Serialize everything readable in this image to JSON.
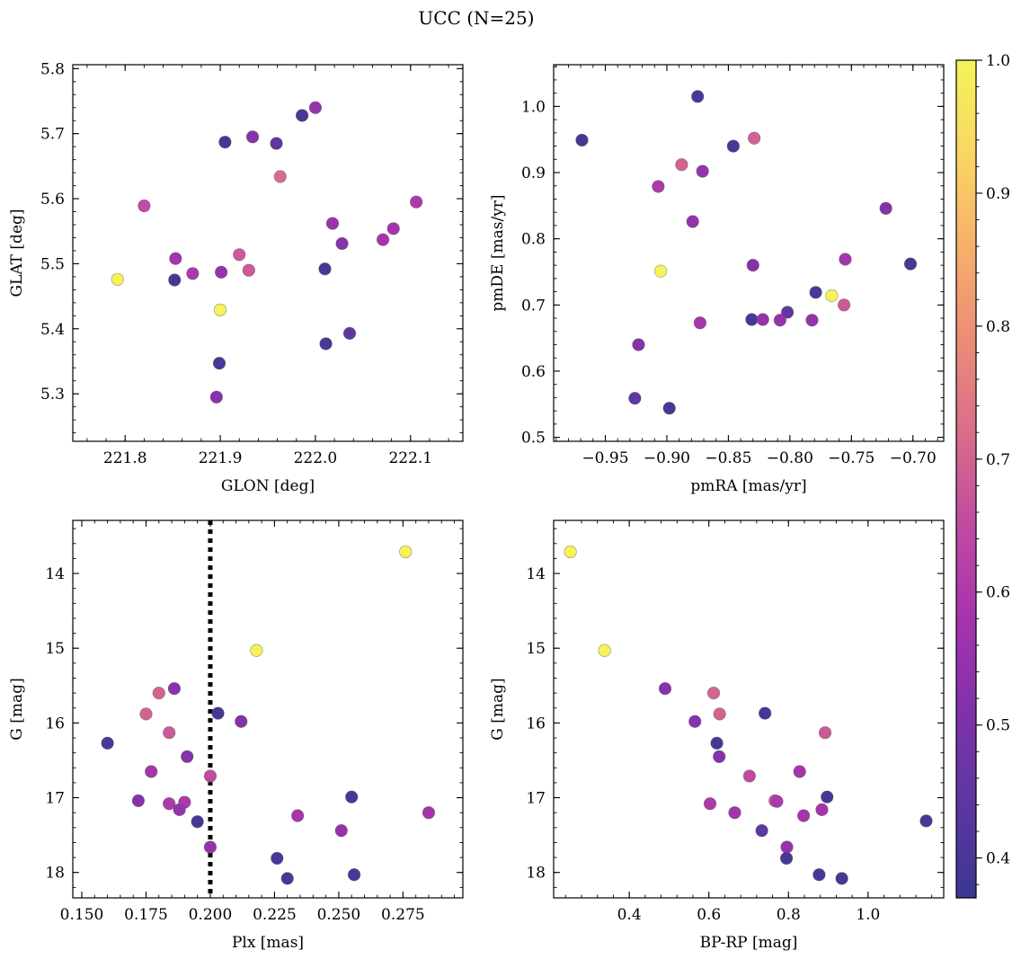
{
  "figure": {
    "title": "UCC (N=25)"
  },
  "colorbar": {
    "range": [
      0.37,
      1.0
    ],
    "ticks": [
      0.4,
      0.5,
      0.6,
      0.7,
      0.8,
      0.9,
      1.0
    ],
    "tick_labels": [
      "0.4",
      "0.5",
      "0.6",
      "0.7",
      "0.8",
      "0.9",
      "1.0"
    ],
    "colormap": "plasma",
    "colors": [
      "#3b3791",
      "#5b37a0",
      "#8132a9",
      "#a534ad",
      "#c14aa3",
      "#da6d8a",
      "#eb8d77",
      "#f6b06a",
      "#f8d764",
      "#f5f25a"
    ]
  },
  "chart_data": [
    {
      "type": "scatter",
      "xlabel": "GLON [deg]",
      "ylabel": "GLAT [deg]",
      "xlim": [
        221.745,
        222.155
      ],
      "ylim": [
        5.227,
        5.806
      ],
      "x_ticks": [
        221.8,
        221.9,
        222.0,
        222.1
      ],
      "x_tick_labels": [
        "221.8",
        "221.9",
        "222.0",
        "222.1"
      ],
      "y_ticks": [
        5.3,
        5.4,
        5.5,
        5.6,
        5.7,
        5.8
      ],
      "y_tick_labels": [
        "5.3",
        "5.4",
        "5.5",
        "5.6",
        "5.7",
        "5.8"
      ],
      "points": [
        {
          "x": 221.792,
          "y": 5.476,
          "c": 1.0
        },
        {
          "x": 221.9,
          "y": 5.429,
          "c": 1.0
        },
        {
          "x": 221.82,
          "y": 5.589,
          "c": 0.65
        },
        {
          "x": 221.853,
          "y": 5.508,
          "c": 0.58
        },
        {
          "x": 221.852,
          "y": 5.475,
          "c": 0.4
        },
        {
          "x": 221.871,
          "y": 5.485,
          "c": 0.6
        },
        {
          "x": 221.901,
          "y": 5.487,
          "c": 0.55
        },
        {
          "x": 221.905,
          "y": 5.687,
          "c": 0.4
        },
        {
          "x": 221.92,
          "y": 5.514,
          "c": 0.68
        },
        {
          "x": 221.93,
          "y": 5.49,
          "c": 0.68
        },
        {
          "x": 221.934,
          "y": 5.695,
          "c": 0.52
        },
        {
          "x": 221.959,
          "y": 5.685,
          "c": 0.45
        },
        {
          "x": 221.963,
          "y": 5.634,
          "c": 0.72
        },
        {
          "x": 221.986,
          "y": 5.728,
          "c": 0.4
        },
        {
          "x": 222.0,
          "y": 5.74,
          "c": 0.55
        },
        {
          "x": 222.01,
          "y": 5.492,
          "c": 0.4
        },
        {
          "x": 222.011,
          "y": 5.377,
          "c": 0.4
        },
        {
          "x": 222.018,
          "y": 5.562,
          "c": 0.56
        },
        {
          "x": 222.028,
          "y": 5.531,
          "c": 0.52
        },
        {
          "x": 222.036,
          "y": 5.393,
          "c": 0.45
        },
        {
          "x": 222.071,
          "y": 5.537,
          "c": 0.58
        },
        {
          "x": 222.082,
          "y": 5.554,
          "c": 0.58
        },
        {
          "x": 222.106,
          "y": 5.595,
          "c": 0.6
        },
        {
          "x": 221.899,
          "y": 5.347,
          "c": 0.4
        },
        {
          "x": 221.896,
          "y": 5.295,
          "c": 0.52
        }
      ]
    },
    {
      "type": "scatter",
      "xlabel": "pmRA [mas/yr]",
      "ylabel": "pmDE [mas/yr]",
      "xlim": [
        -0.992,
        -0.675
      ],
      "ylim": [
        0.494,
        1.063
      ],
      "x_ticks": [
        -0.95,
        -0.9,
        -0.85,
        -0.8,
        -0.75,
        -0.7
      ],
      "x_tick_labels": [
        "−0.95",
        "−0.90",
        "−0.85",
        "−0.80",
        "−0.75",
        "−0.70"
      ],
      "y_ticks": [
        0.5,
        0.6,
        0.7,
        0.8,
        0.9,
        1.0
      ],
      "y_tick_labels": [
        "0.5",
        "0.6",
        "0.7",
        "0.8",
        "0.9",
        "1.0"
      ],
      "points": [
        {
          "x": -0.969,
          "y": 0.949,
          "c": 0.4
        },
        {
          "x": -0.875,
          "y": 1.015,
          "c": 0.4
        },
        {
          "x": -0.846,
          "y": 0.94,
          "c": 0.4
        },
        {
          "x": -0.829,
          "y": 0.952,
          "c": 0.7
        },
        {
          "x": -0.888,
          "y": 0.912,
          "c": 0.7
        },
        {
          "x": -0.907,
          "y": 0.879,
          "c": 0.6
        },
        {
          "x": -0.871,
          "y": 0.902,
          "c": 0.55
        },
        {
          "x": -0.879,
          "y": 0.826,
          "c": 0.55
        },
        {
          "x": -0.905,
          "y": 0.751,
          "c": 1.0
        },
        {
          "x": -0.83,
          "y": 0.76,
          "c": 0.52
        },
        {
          "x": -0.722,
          "y": 0.846,
          "c": 0.52
        },
        {
          "x": -0.755,
          "y": 0.769,
          "c": 0.58
        },
        {
          "x": -0.702,
          "y": 0.762,
          "c": 0.4
        },
        {
          "x": -0.779,
          "y": 0.719,
          "c": 0.4
        },
        {
          "x": -0.766,
          "y": 0.714,
          "c": 1.0
        },
        {
          "x": -0.756,
          "y": 0.7,
          "c": 0.68
        },
        {
          "x": -0.802,
          "y": 0.689,
          "c": 0.45
        },
        {
          "x": -0.831,
          "y": 0.678,
          "c": 0.4
        },
        {
          "x": -0.822,
          "y": 0.678,
          "c": 0.55
        },
        {
          "x": -0.808,
          "y": 0.677,
          "c": 0.55
        },
        {
          "x": -0.782,
          "y": 0.677,
          "c": 0.55
        },
        {
          "x": -0.873,
          "y": 0.673,
          "c": 0.58
        },
        {
          "x": -0.923,
          "y": 0.64,
          "c": 0.52
        },
        {
          "x": -0.926,
          "y": 0.559,
          "c": 0.45
        },
        {
          "x": -0.898,
          "y": 0.544,
          "c": 0.4
        }
      ]
    },
    {
      "type": "scatter",
      "xlabel": "Plx [mas]",
      "ylabel": "G [mag]",
      "xlim": [
        0.1465,
        0.2983
      ],
      "ylim": [
        18.34,
        13.29
      ],
      "y_inverted": true,
      "vline": 0.2,
      "x_ticks": [
        0.15,
        0.175,
        0.2,
        0.225,
        0.25,
        0.275
      ],
      "x_tick_labels": [
        "0.150",
        "0.175",
        "0.200",
        "0.225",
        "0.250",
        "0.275"
      ],
      "y_ticks": [
        14,
        15,
        16,
        17,
        18
      ],
      "y_tick_labels": [
        "14",
        "15",
        "16",
        "17",
        "18"
      ],
      "points": [
        {
          "x": 0.276,
          "y": 13.71,
          "c": 1.0
        },
        {
          "x": 0.218,
          "y": 15.03,
          "c": 1.0
        },
        {
          "x": 0.186,
          "y": 15.54,
          "c": 0.52
        },
        {
          "x": 0.18,
          "y": 15.6,
          "c": 0.7
        },
        {
          "x": 0.175,
          "y": 15.88,
          "c": 0.7
        },
        {
          "x": 0.203,
          "y": 15.87,
          "c": 0.4
        },
        {
          "x": 0.212,
          "y": 15.98,
          "c": 0.52
        },
        {
          "x": 0.184,
          "y": 16.13,
          "c": 0.68
        },
        {
          "x": 0.16,
          "y": 16.27,
          "c": 0.4
        },
        {
          "x": 0.191,
          "y": 16.45,
          "c": 0.52
        },
        {
          "x": 0.177,
          "y": 16.65,
          "c": 0.58
        },
        {
          "x": 0.2,
          "y": 16.71,
          "c": 0.65
        },
        {
          "x": 0.172,
          "y": 17.04,
          "c": 0.52
        },
        {
          "x": 0.184,
          "y": 17.08,
          "c": 0.6
        },
        {
          "x": 0.19,
          "y": 17.06,
          "c": 0.6
        },
        {
          "x": 0.188,
          "y": 17.16,
          "c": 0.55
        },
        {
          "x": 0.195,
          "y": 17.32,
          "c": 0.4
        },
        {
          "x": 0.255,
          "y": 16.99,
          "c": 0.4
        },
        {
          "x": 0.234,
          "y": 17.24,
          "c": 0.58
        },
        {
          "x": 0.251,
          "y": 17.44,
          "c": 0.55
        },
        {
          "x": 0.285,
          "y": 17.2,
          "c": 0.58
        },
        {
          "x": 0.2,
          "y": 17.66,
          "c": 0.55
        },
        {
          "x": 0.226,
          "y": 17.81,
          "c": 0.4
        },
        {
          "x": 0.23,
          "y": 18.08,
          "c": 0.4
        },
        {
          "x": 0.256,
          "y": 18.03,
          "c": 0.4
        }
      ]
    },
    {
      "type": "scatter",
      "xlabel": "BP-RP [mag]",
      "ylabel": "G [mag]",
      "xlim": [
        0.21,
        1.19
      ],
      "ylim": [
        18.34,
        13.29
      ],
      "y_inverted": true,
      "x_ticks": [
        0.4,
        0.6,
        0.8,
        1.0
      ],
      "x_tick_labels": [
        "0.4",
        "0.6",
        "0.8",
        "1.0"
      ],
      "y_ticks": [
        14,
        15,
        16,
        17,
        18
      ],
      "y_tick_labels": [
        "14",
        "15",
        "16",
        "17",
        "18"
      ],
      "points": [
        {
          "x": 0.252,
          "y": 13.71,
          "c": 1.0
        },
        {
          "x": 0.338,
          "y": 15.03,
          "c": 1.0
        },
        {
          "x": 0.49,
          "y": 15.54,
          "c": 0.52
        },
        {
          "x": 0.612,
          "y": 15.6,
          "c": 0.7
        },
        {
          "x": 0.627,
          "y": 15.88,
          "c": 0.7
        },
        {
          "x": 0.741,
          "y": 15.87,
          "c": 0.4
        },
        {
          "x": 0.565,
          "y": 15.98,
          "c": 0.52
        },
        {
          "x": 0.892,
          "y": 16.13,
          "c": 0.68
        },
        {
          "x": 0.62,
          "y": 16.27,
          "c": 0.4
        },
        {
          "x": 0.626,
          "y": 16.45,
          "c": 0.52
        },
        {
          "x": 0.828,
          "y": 16.65,
          "c": 0.58
        },
        {
          "x": 0.702,
          "y": 16.71,
          "c": 0.65
        },
        {
          "x": 0.897,
          "y": 16.99,
          "c": 0.4
        },
        {
          "x": 0.766,
          "y": 17.04,
          "c": 0.68
        },
        {
          "x": 0.771,
          "y": 17.05,
          "c": 0.6
        },
        {
          "x": 0.603,
          "y": 17.08,
          "c": 0.6
        },
        {
          "x": 0.884,
          "y": 17.16,
          "c": 0.58
        },
        {
          "x": 0.665,
          "y": 17.2,
          "c": 0.58
        },
        {
          "x": 0.838,
          "y": 17.24,
          "c": 0.58
        },
        {
          "x": 1.146,
          "y": 17.31,
          "c": 0.4
        },
        {
          "x": 0.733,
          "y": 17.44,
          "c": 0.45
        },
        {
          "x": 0.796,
          "y": 17.66,
          "c": 0.55
        },
        {
          "x": 0.795,
          "y": 17.81,
          "c": 0.4
        },
        {
          "x": 0.877,
          "y": 18.03,
          "c": 0.4
        },
        {
          "x": 0.934,
          "y": 18.08,
          "c": 0.4
        }
      ]
    }
  ]
}
